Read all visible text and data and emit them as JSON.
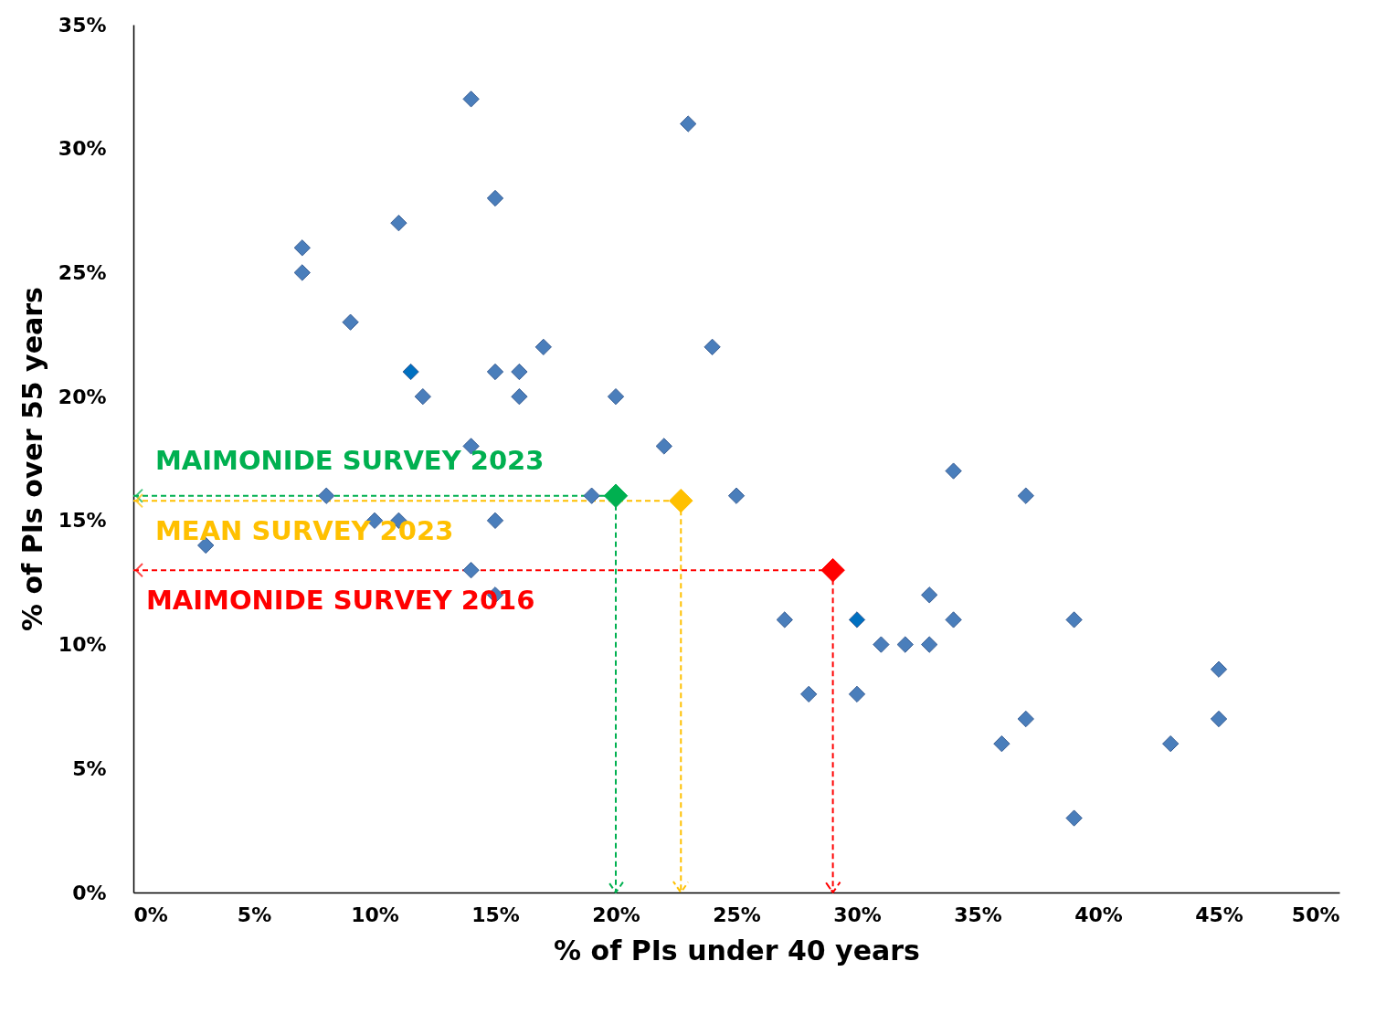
{
  "chart_data": {
    "type": "scatter",
    "xlabel": "% of PIs under 40 years",
    "ylabel": "% of PIs over 55 years",
    "marker": "diamond",
    "grid": false,
    "legend": "left",
    "ref_lines": [
      {
        "axis": "y",
        "value": 16,
        "color": "#00b050",
        "line_style": "dashed"
      },
      {
        "axis": "x",
        "value": 20,
        "color": "#00b050",
        "line_style": "dashed"
      },
      {
        "axis": "y",
        "value": 15.8,
        "color": "#ffc000",
        "line_style": "dashed"
      },
      {
        "axis": "x",
        "value": 22.7,
        "color": "#ffc000",
        "line_style": "dashed"
      },
      {
        "axis": "y",
        "value": 13,
        "color": "#ff0000",
        "line_style": "dashed"
      },
      {
        "axis": "x",
        "value": 29,
        "color": "#ff0000",
        "line_style": "dashed"
      }
    ],
    "xlim": [
      0,
      50
    ],
    "ylim": [
      0,
      35
    ],
    "xticks": [
      {
        "value": 0,
        "label": "0%"
      },
      {
        "value": 5,
        "label": "5%"
      },
      {
        "value": 10,
        "label": "10%"
      },
      {
        "value": 15,
        "label": "15%"
      },
      {
        "value": 20,
        "label": "20%"
      },
      {
        "value": 25,
        "label": "25%"
      },
      {
        "value": 30,
        "label": "30%"
      },
      {
        "value": 35,
        "label": "35%"
      },
      {
        "value": 40,
        "label": "40%"
      },
      {
        "value": 45,
        "label": "45%"
      },
      {
        "value": 50,
        "label": "50%"
      }
    ],
    "yticks": [
      {
        "value": 0,
        "label": "0%"
      },
      {
        "value": 5,
        "label": "5%"
      },
      {
        "value": 10,
        "label": "10%"
      },
      {
        "value": 15,
        "label": "15%"
      },
      {
        "value": 20,
        "label": "20%"
      },
      {
        "value": 25,
        "label": "25%"
      },
      {
        "value": 30,
        "label": "30%"
      },
      {
        "value": 35,
        "label": "35%"
      }
    ],
    "series": [
      {
        "color": "#4a7ebb",
        "x": [
          14,
          23,
          15,
          11,
          7,
          7,
          9,
          17,
          24,
          15,
          16,
          12,
          16,
          20,
          14,
          22,
          34,
          8,
          19,
          25,
          37,
          10,
          11,
          15,
          3,
          14,
          15,
          33,
          27,
          34,
          39,
          31,
          32,
          33,
          28,
          30,
          45,
          37,
          45,
          36,
          43,
          39
        ],
        "values": [
          32,
          31,
          28,
          27,
          26,
          25,
          23,
          22,
          22,
          21,
          21,
          20,
          20,
          20,
          18,
          18,
          17,
          16,
          16,
          16,
          16,
          15,
          15,
          15,
          14,
          13,
          12,
          12,
          11,
          11,
          11,
          10,
          10,
          10,
          8,
          8,
          9,
          7,
          7,
          6,
          6,
          3
        ]
      },
      {
        "color": "#0070c0",
        "x": [
          11.5,
          30
        ],
        "values": [
          21,
          11
        ]
      },
      {
        "name": "MAIMONIDE SURVEY 2023",
        "color": "#00b050",
        "x": [
          20
        ],
        "values": [
          16
        ]
      },
      {
        "name": "MEAN SURVEY 2023",
        "color": "#ffc000",
        "x": [
          22.7
        ],
        "values": [
          15.8
        ]
      },
      {
        "name": "MAIMONIDE SURVEY 2016",
        "color": "#ff0000",
        "x": [
          29
        ],
        "values": [
          13
        ]
      }
    ]
  }
}
